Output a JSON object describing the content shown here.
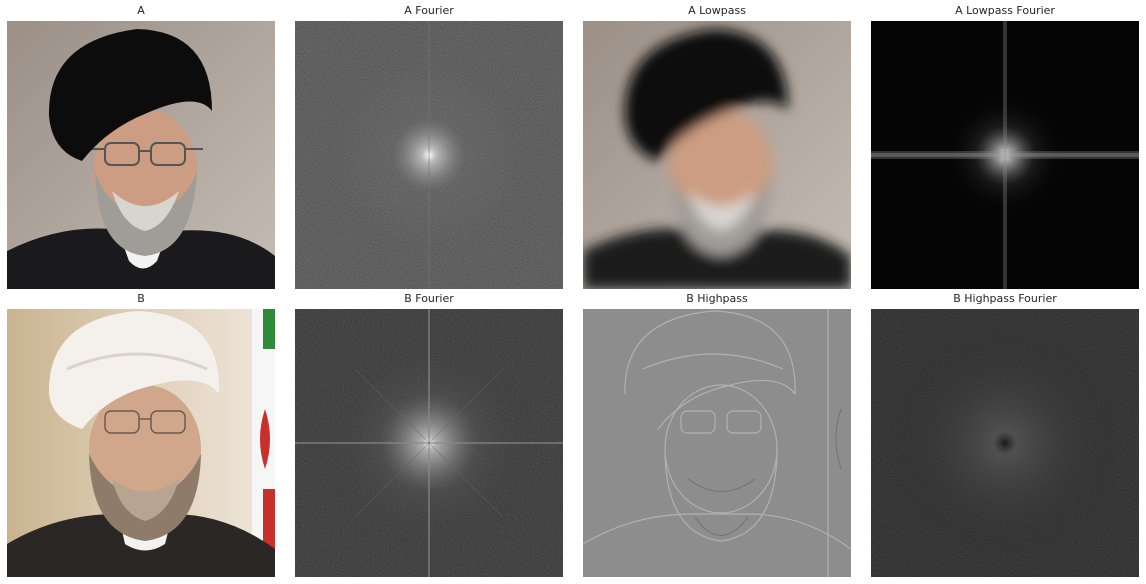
{
  "figure": {
    "panels": [
      {
        "id": "a",
        "title": "A"
      },
      {
        "id": "a-fourier",
        "title": "A Fourier"
      },
      {
        "id": "a-lowpass",
        "title": "A Lowpass"
      },
      {
        "id": "a-lowpass-fourier",
        "title": "A Lowpass Fourier"
      },
      {
        "id": "b",
        "title": "B"
      },
      {
        "id": "b-fourier",
        "title": "B Fourier"
      },
      {
        "id": "b-highpass",
        "title": "B Highpass"
      },
      {
        "id": "b-highpass-fourier",
        "title": "B Highpass Fourier"
      }
    ]
  }
}
